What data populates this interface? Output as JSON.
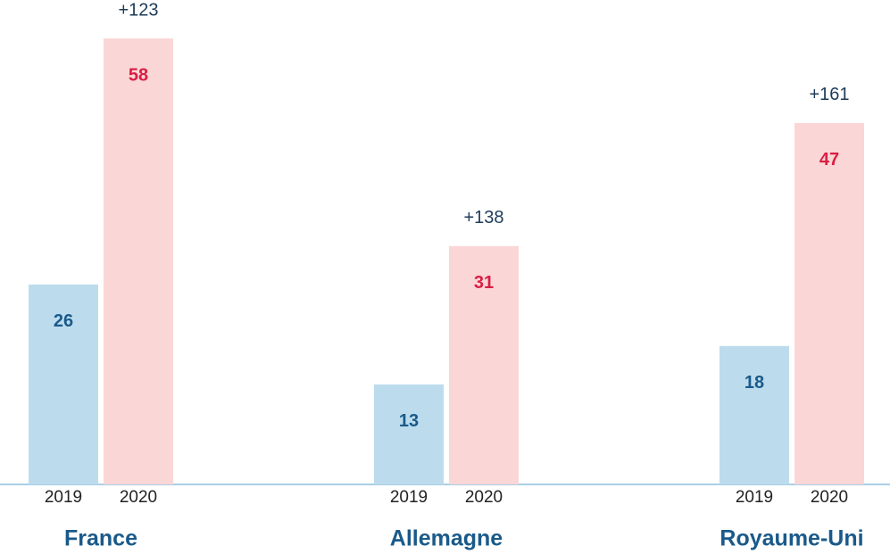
{
  "chart_data": {
    "type": "bar",
    "categories": [
      "France",
      "Allemagne",
      "Royaume-Uni"
    ],
    "series": [
      {
        "name": "2019",
        "color": "#bcdcee",
        "label_color": "#1a5a8a",
        "values": [
          26,
          13,
          18
        ]
      },
      {
        "name": "2020",
        "color": "#fbd6d6",
        "label_color": "#d81f44",
        "values": [
          58,
          31,
          47
        ]
      }
    ],
    "annotations": [
      "+123",
      "+138",
      "+161"
    ],
    "ylim": [
      0,
      63
    ]
  }
}
